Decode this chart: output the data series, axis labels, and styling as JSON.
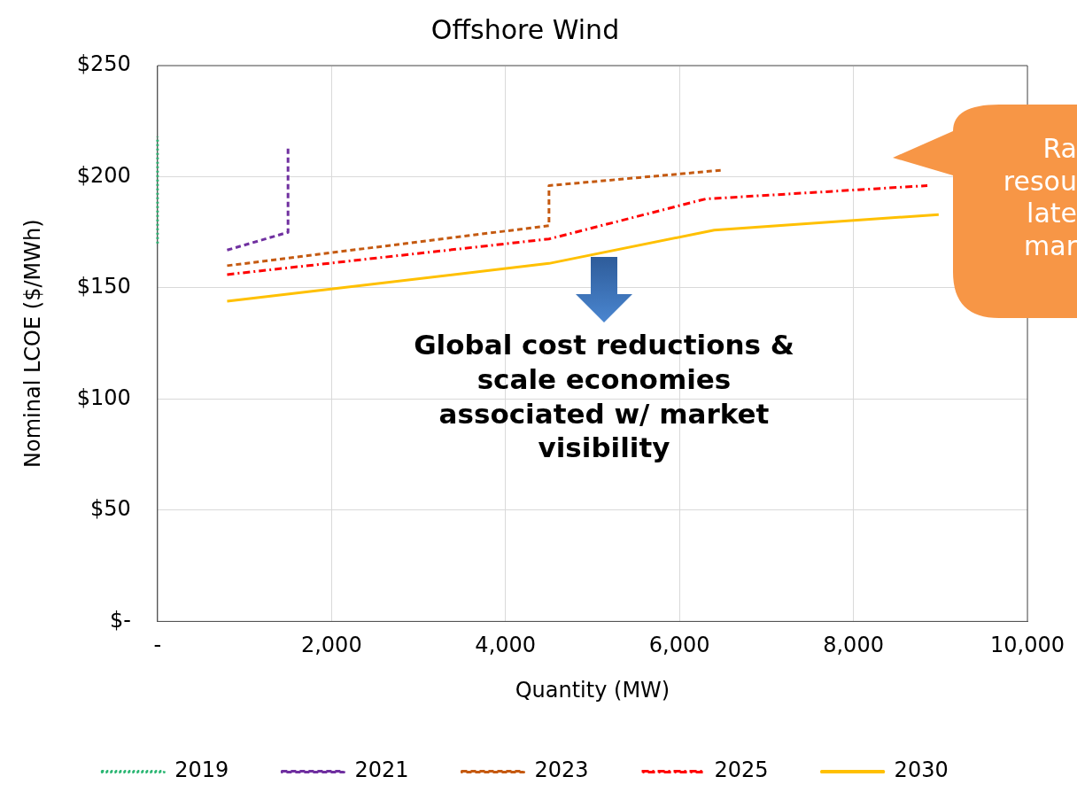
{
  "chart_data": {
    "type": "line",
    "title": "Offshore Wind",
    "xlabel": "Quantity (MW)",
    "ylabel": "Nominal LCOE ($/MWh)",
    "xlim": [
      0,
      10000
    ],
    "xticks": [
      {
        "value": 0,
        "label": "-"
      },
      {
        "value": 2000,
        "label": "2,000"
      },
      {
        "value": 4000,
        "label": "4,000"
      },
      {
        "value": 6000,
        "label": "6,000"
      },
      {
        "value": 8000,
        "label": "8,000"
      },
      {
        "value": 10000,
        "label": "10,000"
      }
    ],
    "ylim": [
      0,
      250
    ],
    "yticks": [
      {
        "value": 0,
        "label": "$-"
      },
      {
        "value": 50,
        "label": "$50"
      },
      {
        "value": 100,
        "label": "$100"
      },
      {
        "value": 150,
        "label": "$150"
      },
      {
        "value": 200,
        "label": "$200"
      },
      {
        "value": 250,
        "label": "$250"
      }
    ],
    "grid": true,
    "legend": "bottom",
    "marker": "none",
    "series": [
      {
        "name": "2019",
        "color": "#2bb673",
        "line_style": "dotted",
        "x": [
          0,
          0
        ],
        "values": [
          170,
          218
        ]
      },
      {
        "name": "2021",
        "color": "#7030a0",
        "line_style": "dashed",
        "x": [
          800,
          1500,
          1500
        ],
        "values": [
          167,
          175,
          213
        ]
      },
      {
        "name": "2023",
        "color": "#c55a11",
        "line_style": "dashed",
        "x": [
          800,
          4500,
          4500,
          6500
        ],
        "values": [
          160,
          178,
          196,
          203
        ]
      },
      {
        "name": "2025",
        "color": "#ff0000",
        "line_style": "dashdot",
        "x": [
          800,
          4500,
          6300,
          8850
        ],
        "values": [
          156,
          172,
          190,
          196
        ]
      },
      {
        "name": "2030",
        "color": "#ffc000",
        "line_style": "solid",
        "x": [
          800,
          4500,
          6400,
          8980
        ],
        "values": [
          144,
          161,
          176,
          183
        ]
      }
    ],
    "annotations": [
      "Global cost reductions & scale economies associated w/ market visibility",
      "Ra\nresou\nlate\nmar"
    ]
  }
}
